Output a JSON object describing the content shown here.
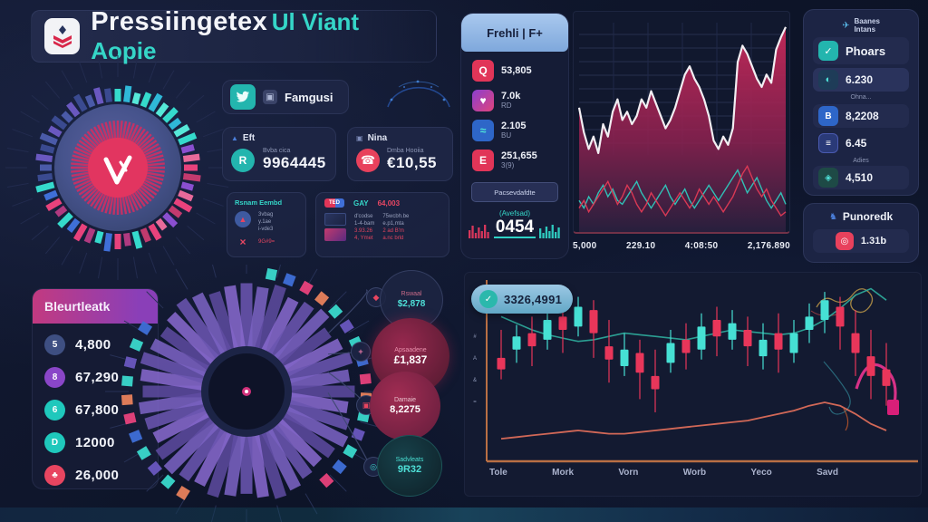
{
  "app": {
    "title_primary": "Pressiingetex",
    "title_accent": "Ul Viant Aopie"
  },
  "colors": {
    "background": "#0d1428",
    "panel": "#1a2240",
    "teal": "#2fd3c6",
    "crimson": "#c22a52",
    "pink": "#e8427c",
    "blue": "#3f6fd8",
    "salmon": "#e8815c",
    "header_blue": "#a6c6ee",
    "up_candle": "#46e0d4",
    "down_candle": "#e8365a",
    "axis_orange": "#b96f44"
  },
  "stats": {
    "social_card": {
      "label": "Famgusi"
    },
    "eft_card": {
      "title": "Eft",
      "icon_letter": "R",
      "sublabel": "Bvba cica",
      "value": "9964445"
    },
    "nina_card": {
      "title": "Nina",
      "icon_glyph": "☎",
      "sublabel": "Dmba Hooiia",
      "value": "€10,55"
    },
    "mini_card_a": {
      "title": "Rsnam Eembd",
      "line1": "3vbag",
      "line2": "y.1ae",
      "line3": "i-vde3",
      "alert_icon": "×",
      "alert_value": "9G#9="
    },
    "mini_card_b": {
      "badge": "TED",
      "tag": "GAY",
      "value": "64,003",
      "c1l1": "d'codse",
      "c1l2": "1-4-bam",
      "c1l3": "3.93.26",
      "c1l4": "4, Ymet",
      "c2l1": "75wcbh.be",
      "c2l2": "e.p1,mta",
      "c2l3": "2 ad B'm",
      "c2l4": "a.nc brld"
    }
  },
  "watchlist": {
    "header": "Frehli | F+",
    "item1": {
      "icon": "Q",
      "value": "53,805",
      "sub": ""
    },
    "item2": {
      "icon": "♥",
      "value": "7.0k",
      "sub": "RD"
    },
    "item3": {
      "icon": "≈",
      "value": "2.105",
      "sub": "BU"
    },
    "item4": {
      "icon": "E",
      "value": "251,655",
      "sub": "3(9)"
    },
    "button_label": "Pacsevdafdte",
    "footer_label": "(Avefsad)",
    "footer_value": "0454"
  },
  "right_panel": {
    "title_line1": "Baanes",
    "title_line2": "Intans",
    "title_icon": "✈",
    "row_phoars": "Phoars",
    "row_630": "6.230",
    "sub_ohna": "Ohna...",
    "row_8220": "8,2208",
    "row_645": "6.45",
    "sub_adies": "Adies",
    "row_4510": "4,510"
  },
  "promo_panel": {
    "title": "Punoredk",
    "title_icon": "♞",
    "value": "1.31b",
    "value_icon": "◎"
  },
  "holdings": {
    "title": "Bleurtleatk",
    "rows": [
      {
        "icon": "5",
        "value": "4,800"
      },
      {
        "icon": "8",
        "value": "67,290"
      },
      {
        "icon": "6",
        "value": "67,800"
      },
      {
        "icon": "D",
        "value": "12000"
      },
      {
        "icon": "♣",
        "value": "26,000"
      }
    ]
  },
  "callouts": [
    {
      "label": "Rswaal",
      "value": "$2,878"
    },
    {
      "label": "Apsaadene",
      "value": "£1,837"
    },
    {
      "label": "Damaie",
      "value": "8,2275"
    },
    {
      "label": "Sadvleats",
      "value": "9R32"
    }
  ],
  "candle_panel": {
    "badge_value": "3326,4991",
    "y_glyphs": "#\nA\n&\n="
  },
  "chart_data": [
    {
      "id": "price-area",
      "type": "area",
      "title": "",
      "xlabel": "",
      "ylabel": "",
      "ylim": [
        0,
        100
      ],
      "grid": true,
      "x_labels": [
        "5,000",
        "229.10",
        "4:08:50",
        "2,176.890"
      ],
      "series": [
        {
          "name": "main-price",
          "color": "#c22a52",
          "stroke": "#f2eef2",
          "values": [
            58,
            46,
            38,
            44,
            36,
            50,
            44,
            56,
            62,
            52,
            56,
            50,
            54,
            62,
            58,
            66,
            60,
            54,
            48,
            52,
            58,
            66,
            74,
            78,
            72,
            68,
            62,
            54,
            42,
            38,
            44,
            40,
            48,
            80,
            88,
            84,
            78,
            72,
            68,
            74,
            70,
            86,
            92,
            97
          ]
        },
        {
          "name": "alt-teal",
          "color": "#2fc9bd",
          "values": [
            18,
            14,
            20,
            16,
            22,
            26,
            20,
            24,
            18,
            16,
            20,
            24,
            28,
            22,
            18,
            14,
            18,
            22,
            26,
            20,
            16,
            20,
            24,
            18,
            14,
            18,
            22,
            26,
            22,
            18,
            22,
            26,
            30,
            34,
            28,
            22,
            26,
            30,
            24,
            18,
            14,
            18,
            22,
            16
          ]
        },
        {
          "name": "alt-red",
          "color": "#e03a55",
          "values": [
            14,
            18,
            12,
            16,
            20,
            24,
            28,
            22,
            16,
            20,
            26,
            22,
            16,
            12,
            16,
            22,
            18,
            14,
            10,
            14,
            18,
            22,
            18,
            14,
            18,
            24,
            20,
            16,
            20,
            16,
            12,
            16,
            20,
            26,
            32,
            36,
            30,
            24,
            20,
            24,
            18,
            14,
            10,
            12
          ]
        }
      ]
    },
    {
      "id": "candles",
      "type": "candlestick",
      "x_labels": [
        "Tole",
        "Mork",
        "Vorn",
        "Worb",
        "Yeco",
        "Savd"
      ],
      "up_color": "#46e0d4",
      "down_color": "#e8365a",
      "candles": [
        [
          55,
          48,
          42,
          72
        ],
        [
          60,
          68,
          52,
          75
        ],
        [
          70,
          62,
          50,
          80
        ],
        [
          66,
          78,
          60,
          85
        ],
        [
          80,
          72,
          58,
          88
        ],
        [
          74,
          86,
          68,
          92
        ],
        [
          84,
          70,
          55,
          90
        ],
        [
          62,
          54,
          40,
          78
        ],
        [
          50,
          60,
          44,
          70
        ],
        [
          58,
          46,
          30,
          66
        ],
        [
          44,
          36,
          22,
          60
        ],
        [
          52,
          64,
          46,
          72
        ],
        [
          66,
          58,
          48,
          76
        ],
        [
          60,
          74,
          54,
          82
        ],
        [
          78,
          68,
          56,
          86
        ],
        [
          66,
          76,
          60,
          84
        ],
        [
          72,
          62,
          50,
          80
        ],
        [
          56,
          66,
          48,
          76
        ],
        [
          70,
          60,
          46,
          82
        ],
        [
          58,
          70,
          52,
          78
        ],
        [
          72,
          80,
          64,
          88
        ],
        [
          78,
          90,
          70,
          95
        ],
        [
          86,
          74,
          60,
          92
        ],
        [
          70,
          58,
          44,
          84
        ],
        [
          56,
          44,
          30,
          72
        ],
        [
          48,
          38,
          26,
          64
        ]
      ],
      "ma_line": [
        80,
        76,
        72,
        69,
        67,
        65,
        66,
        68,
        70,
        69,
        68,
        67,
        66,
        68,
        70,
        72,
        71,
        70,
        69,
        70,
        73,
        78,
        85,
        93,
        97,
        90
      ],
      "signal_line": [
        6,
        7,
        8,
        9,
        10,
        11,
        10,
        9,
        9,
        10,
        11,
        12,
        13,
        14,
        15,
        16,
        17,
        19,
        21,
        23,
        26,
        28,
        26,
        21,
        15,
        11
      ]
    },
    {
      "id": "ring-gauge",
      "type": "ring",
      "center_glyph": "V",
      "values": [
        14,
        18,
        12,
        16,
        20,
        15,
        18,
        13,
        17,
        20,
        14,
        18,
        15,
        19,
        13,
        16,
        20,
        14,
        17,
        12,
        18,
        15,
        19,
        14,
        17,
        20,
        13,
        16,
        19,
        15,
        18,
        12,
        17,
        14,
        20,
        16,
        13,
        18,
        15,
        19,
        14,
        17,
        12,
        16,
        19,
        13,
        18,
        15
      ]
    },
    {
      "id": "polar-main",
      "type": "polar",
      "values": [
        92,
        88,
        95,
        85,
        90,
        96,
        82,
        88,
        94,
        86,
        92,
        84,
        90,
        96,
        88,
        82,
        86,
        92,
        96,
        90,
        84,
        88,
        94,
        86,
        90,
        96,
        92,
        84,
        88,
        92,
        86,
        90,
        94,
        88,
        84,
        90,
        96,
        92,
        86,
        90
      ]
    },
    {
      "id": "footer-spark",
      "type": "bar",
      "red_values": [
        9,
        14,
        6,
        12,
        8,
        15,
        7
      ],
      "teal_values": [
        11,
        6,
        13,
        8,
        15,
        7,
        12
      ]
    }
  ]
}
